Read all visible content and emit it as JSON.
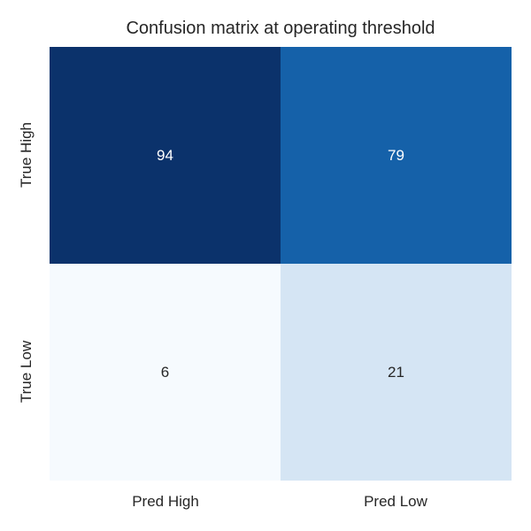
{
  "title": "Confusion matrix at operating threshold",
  "colors": {
    "background": "#ffffff",
    "text": "#262626",
    "annot_light": "#ffffff",
    "annot_dark": "#262626"
  },
  "chart_data": {
    "type": "heatmap",
    "title": "Confusion matrix at operating threshold",
    "colormap": "Blues",
    "rows": [
      "True High",
      "True Low"
    ],
    "columns": [
      "Pred High",
      "Pred Low"
    ],
    "values": [
      [
        94,
        79
      ],
      [
        6,
        21
      ]
    ],
    "value_range": [
      6,
      94
    ],
    "legend_position": "none",
    "grid": false,
    "cells": [
      {
        "row": "True High",
        "col": "Pred High",
        "value": "94",
        "color": "#0b326b",
        "text_color": "#ffffff"
      },
      {
        "row": "True High",
        "col": "Pred Low",
        "value": "79",
        "color": "#1561a9",
        "text_color": "#ffffff"
      },
      {
        "row": "True Low",
        "col": "Pred High",
        "value": "6",
        "color": "#f6fafe",
        "text_color": "#262626"
      },
      {
        "row": "True Low",
        "col": "Pred Low",
        "value": "21",
        "color": "#d5e5f4",
        "text_color": "#262626"
      }
    ]
  },
  "axes": {
    "y_labels": [
      "True High",
      "True Low"
    ],
    "x_labels": [
      "Pred High",
      "Pred Low"
    ]
  }
}
